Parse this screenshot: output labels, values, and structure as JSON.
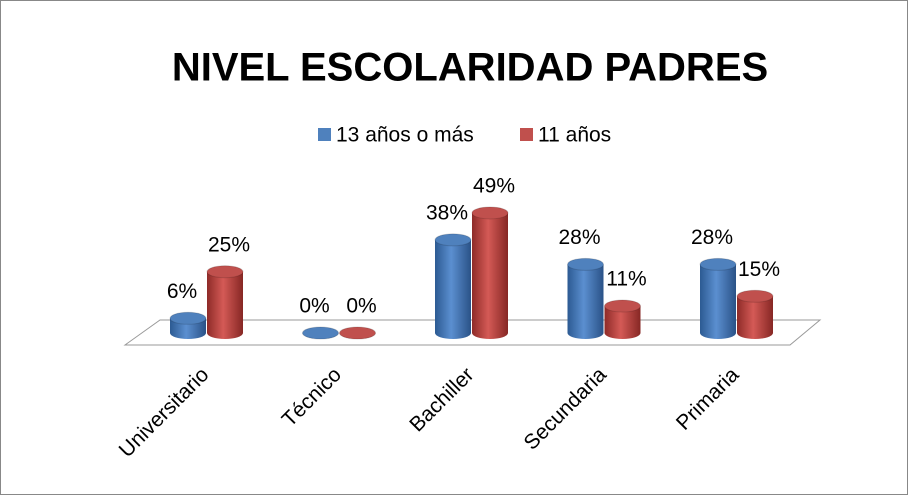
{
  "chart_data": {
    "type": "bar3d",
    "title": "NIVEL ESCOLARIDAD PADRES",
    "categories": [
      "Universitario",
      "Técnico",
      "Bachiller",
      "Secundaria",
      "Primaria"
    ],
    "series": [
      {
        "name": "13 años o más",
        "color": "#4f81bd",
        "values": [
          6,
          0,
          38,
          28,
          28
        ],
        "value_labels": [
          "6%",
          "0%",
          "38%",
          "28%",
          "28%"
        ]
      },
      {
        "name": "11 años",
        "color": "#c0504d",
        "values": [
          25,
          0,
          49,
          11,
          15
        ],
        "value_labels": [
          "25%",
          "0%",
          "49%",
          "11%",
          "15%"
        ]
      }
    ],
    "legend": "top"
  }
}
